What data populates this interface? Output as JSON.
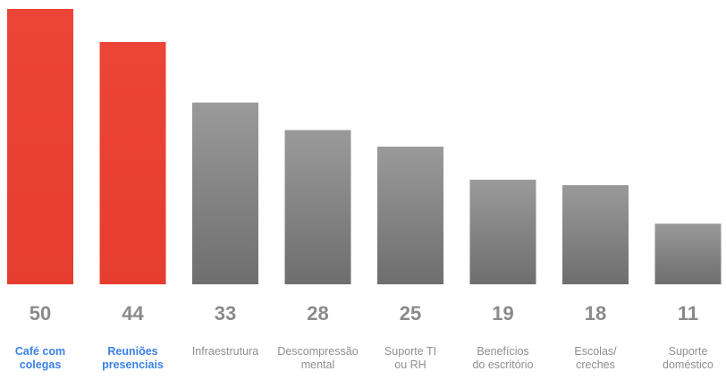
{
  "chart_data": {
    "type": "bar",
    "categories": [
      "Café com\ncolegas",
      "Reuniões\npresenciais",
      "Infraestrutura",
      "Descompressão\nmental",
      "Suporte TI\nou RH",
      "Benefícios\ndo escritório",
      "Escolas/\ncreches",
      "Suporte\ndoméstico"
    ],
    "values": [
      50,
      44,
      33,
      28,
      25,
      19,
      18,
      11
    ],
    "value_labels": [
      "50",
      "44",
      "33",
      "28",
      "25",
      "19",
      "18",
      "11"
    ],
    "highlighted": [
      true,
      true,
      false,
      false,
      false,
      false,
      false,
      false
    ],
    "ylim": [
      0,
      50
    ],
    "grid": false,
    "legend": "none",
    "colors": {
      "highlight_bar": "#ea4335",
      "default_bar": "#8c8c8c",
      "highlight_label": "#3b82e6",
      "default_label": "#8f8f8f",
      "value_label": "#8a8a8a"
    }
  }
}
